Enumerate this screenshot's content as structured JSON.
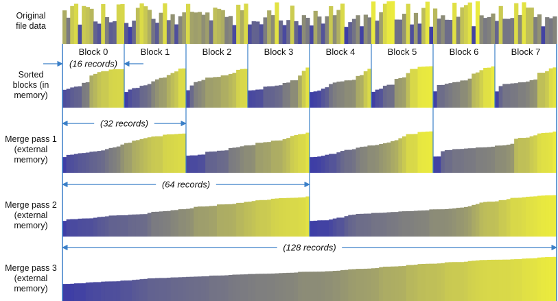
{
  "row_labels": [
    [
      "Original",
      "file data"
    ],
    [
      "Sorted",
      "blocks (in",
      "memory)"
    ],
    [
      "Merge pass 1",
      "(external",
      "memory)"
    ],
    [
      "Merge pass 2",
      "(external",
      "memory)"
    ],
    [
      "Merge pass 3",
      "(external",
      "memory)"
    ]
  ],
  "blocks": [
    "Block 0",
    "Block 1",
    "Block 2",
    "Block 3",
    "Block 4",
    "Block 5",
    "Block 6",
    "Block 7"
  ],
  "dimensions": [
    {
      "label": "(16 records)"
    },
    {
      "label": "(32 records)"
    },
    {
      "label": "(64 records)"
    },
    {
      "label": "(128 records)"
    }
  ],
  "colors": {
    "low": "#3a3aa8",
    "high": "#f2f23a",
    "divider": "#3a7fc8",
    "arrow": "#3a7fc8"
  },
  "sorting": {
    "total_records": 128,
    "records_per_block": 16,
    "passes_run_sizes": [
      16,
      32,
      64,
      128
    ]
  }
}
